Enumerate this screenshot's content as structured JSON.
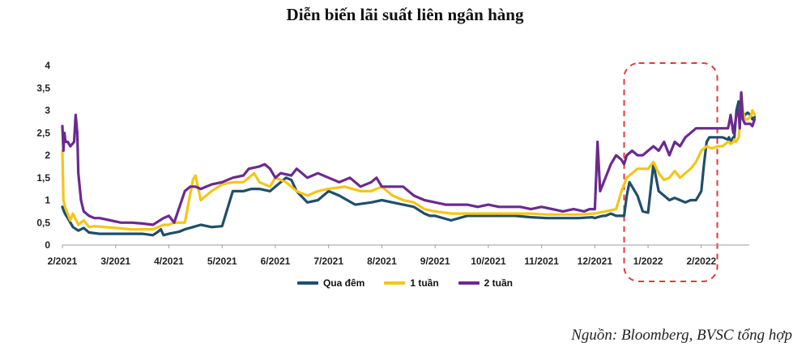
{
  "title": "Diễn biến lãi suất liên ngân hàng",
  "source": "Nguồn: Bloomberg, BVSC tổng hợp",
  "colors": {
    "qua_dem": "#1f4e6b",
    "one_week": "#f5c518",
    "two_week": "#6b2a8f",
    "highlight": "#e53935"
  },
  "chart_data": {
    "type": "line",
    "title": "Diễn biến lãi suất liên ngân hàng",
    "xlabel": "",
    "ylabel": "",
    "ylim": [
      0,
      4
    ],
    "yticks": [
      "0",
      "0,5",
      "1",
      "1,5",
      "2",
      "2,5",
      "3",
      "3,5",
      "4"
    ],
    "xticks": [
      {
        "label": "2/2021",
        "x": 0
      },
      {
        "label": "3/2021",
        "x": 1
      },
      {
        "label": "4/2021",
        "x": 2
      },
      {
        "label": "5/2021",
        "x": 3
      },
      {
        "label": "6/2021",
        "x": 4
      },
      {
        "label": "7/2021",
        "x": 5
      },
      {
        "label": "8/2021",
        "x": 6
      },
      {
        "label": "9/2021",
        "x": 7
      },
      {
        "label": "10/2021",
        "x": 8
      },
      {
        "label": "11/2021",
        "x": 9
      },
      {
        "label": "12/2021",
        "x": 10
      },
      {
        "label": "1/2022",
        "x": 11
      },
      {
        "label": "2/2022",
        "x": 12
      }
    ],
    "highlight_x": [
      10.55,
      12.3
    ],
    "series": [
      {
        "name": "Qua đêm",
        "color": "#1f4e6b",
        "x": [
          0,
          0.03,
          0.06,
          0.1,
          0.15,
          0.2,
          0.3,
          0.4,
          0.5,
          0.7,
          0.9,
          1.2,
          1.5,
          1.7,
          1.8,
          1.85,
          1.9,
          2,
          2.2,
          2.3,
          2.45,
          2.6,
          2.8,
          3,
          3.2,
          3.4,
          3.55,
          3.7,
          3.9,
          4,
          4.2,
          4.3,
          4.4,
          4.6,
          4.8,
          5,
          5.2,
          5.5,
          5.8,
          6,
          6.2,
          6.4,
          6.6,
          6.8,
          6.9,
          7,
          7.3,
          7.6,
          7.9,
          8.2,
          8.5,
          8.8,
          9.1,
          9.4,
          9.7,
          9.95,
          10,
          10.05,
          10.15,
          10.2,
          10.3,
          10.4,
          10.5,
          10.55,
          10.6,
          10.65,
          10.7,
          10.8,
          10.9,
          11,
          11.1,
          11.2,
          11.3,
          11.4,
          11.5,
          11.6,
          11.7,
          11.8,
          11.9,
          12,
          12.05,
          12.1,
          12.15,
          12.2,
          12.3,
          12.4,
          12.5,
          12.52,
          12.55,
          12.6,
          12.62,
          12.66,
          12.7,
          12.72,
          12.75,
          12.78,
          12.82,
          12.87,
          12.92,
          12.96,
          13
        ],
        "values": [
          0.85,
          0.75,
          0.68,
          0.6,
          0.5,
          0.4,
          0.32,
          0.38,
          0.28,
          0.25,
          0.25,
          0.25,
          0.25,
          0.22,
          0.3,
          0.35,
          0.22,
          0.25,
          0.3,
          0.35,
          0.4,
          0.45,
          0.4,
          0.42,
          1.2,
          1.2,
          1.25,
          1.25,
          1.2,
          1.3,
          1.5,
          1.45,
          1.2,
          0.95,
          1.0,
          1.2,
          1.1,
          0.9,
          0.95,
          1.0,
          0.95,
          0.9,
          0.85,
          0.7,
          0.65,
          0.65,
          0.55,
          0.65,
          0.65,
          0.65,
          0.65,
          0.62,
          0.6,
          0.6,
          0.6,
          0.62,
          0.6,
          0.62,
          0.65,
          0.65,
          0.7,
          0.65,
          0.65,
          0.65,
          1.1,
          1.4,
          1.3,
          1.1,
          0.75,
          0.72,
          1.8,
          1.2,
          1.1,
          1.0,
          1.05,
          1.0,
          0.95,
          1.0,
          1.0,
          1.2,
          1.8,
          2.3,
          2.4,
          2.4,
          2.4,
          2.4,
          2.35,
          2.4,
          2.3,
          2.4,
          2.4,
          3.0,
          3.2,
          3.0,
          3.0,
          2.9,
          2.9,
          2.95,
          2.9,
          2.8,
          2.85
        ]
      },
      {
        "name": "1 tuần",
        "color": "#f5c518",
        "x": [
          0,
          0.02,
          0.05,
          0.1,
          0.15,
          0.2,
          0.3,
          0.4,
          0.5,
          0.6,
          0.8,
          1.0,
          1.3,
          1.5,
          1.7,
          1.9,
          2.0,
          2.1,
          2.3,
          2.45,
          2.5,
          2.6,
          2.8,
          3,
          3.2,
          3.4,
          3.5,
          3.6,
          3.7,
          3.9,
          4,
          4.2,
          4.4,
          4.6,
          4.8,
          5,
          5.3,
          5.6,
          5.8,
          6,
          6.2,
          6.4,
          6.6,
          6.8,
          7,
          7.3,
          7.6,
          7.9,
          8.2,
          8.5,
          8.8,
          9.1,
          9.4,
          9.7,
          10,
          10.2,
          10.4,
          10.5,
          10.6,
          10.7,
          10.8,
          10.9,
          11,
          11.1,
          11.2,
          11.3,
          11.4,
          11.5,
          11.6,
          11.7,
          11.8,
          11.9,
          12,
          12.1,
          12.2,
          12.3,
          12.4,
          12.5,
          12.52,
          12.55,
          12.6,
          12.62,
          12.65,
          12.7,
          12.72,
          12.75,
          12.78,
          12.82,
          12.87,
          12.92,
          12.96,
          13
        ],
        "values": [
          2.1,
          1.0,
          0.85,
          0.7,
          0.55,
          0.7,
          0.45,
          0.55,
          0.4,
          0.42,
          0.4,
          0.38,
          0.35,
          0.35,
          0.35,
          0.45,
          0.45,
          0.5,
          0.5,
          1.45,
          1.55,
          1.0,
          1.2,
          1.35,
          1.4,
          1.4,
          1.5,
          1.6,
          1.4,
          1.3,
          1.5,
          1.4,
          1.2,
          1.1,
          1.2,
          1.25,
          1.3,
          1.2,
          1.2,
          1.3,
          1.1,
          1.0,
          0.95,
          0.8,
          0.75,
          0.7,
          0.7,
          0.7,
          0.7,
          0.7,
          0.7,
          0.68,
          0.68,
          0.68,
          0.7,
          0.75,
          0.8,
          1.2,
          1.5,
          1.6,
          1.7,
          1.7,
          1.7,
          1.85,
          1.6,
          1.45,
          1.5,
          1.65,
          1.5,
          1.6,
          1.7,
          1.85,
          2.1,
          2.2,
          2.15,
          2.2,
          2.2,
          2.3,
          2.3,
          2.25,
          2.3,
          2.35,
          2.3,
          2.4,
          2.6,
          3.4,
          3.0,
          2.8,
          2.8,
          2.85,
          3.0,
          2.9
        ]
      },
      {
        "name": "2 tuần",
        "color": "#6b2a8f",
        "x": [
          0,
          0.02,
          0.04,
          0.06,
          0.1,
          0.15,
          0.22,
          0.25,
          0.28,
          0.3,
          0.35,
          0.4,
          0.5,
          0.6,
          0.7,
          0.9,
          1.1,
          1.3,
          1.5,
          1.7,
          1.9,
          2.0,
          2.1,
          2.3,
          2.4,
          2.5,
          2.6,
          2.8,
          3.0,
          3.2,
          3.4,
          3.5,
          3.7,
          3.8,
          3.9,
          4.0,
          4.1,
          4.3,
          4.4,
          4.5,
          4.6,
          4.8,
          5.0,
          5.2,
          5.4,
          5.6,
          5.8,
          5.9,
          6.0,
          6.2,
          6.4,
          6.6,
          6.8,
          7.0,
          7.2,
          7.4,
          7.6,
          7.8,
          8.0,
          8.2,
          8.4,
          8.6,
          8.8,
          9.0,
          9.2,
          9.4,
          9.6,
          9.8,
          9.9,
          10.0,
          10.05,
          10.1,
          10.2,
          10.3,
          10.4,
          10.5,
          10.55,
          10.6,
          10.7,
          10.8,
          10.9,
          11.0,
          11.1,
          11.2,
          11.3,
          11.4,
          11.5,
          11.6,
          11.7,
          11.8,
          11.9,
          12.0,
          12.1,
          12.2,
          12.3,
          12.4,
          12.5,
          12.52,
          12.55,
          12.6,
          12.62,
          12.66,
          12.7,
          12.72,
          12.75,
          12.78,
          12.82,
          12.87,
          12.92,
          12.96,
          13
        ],
        "values": [
          2.65,
          2.1,
          2.5,
          2.3,
          2.3,
          2.2,
          2.3,
          2.9,
          2.5,
          1.6,
          1.0,
          0.75,
          0.65,
          0.6,
          0.6,
          0.55,
          0.5,
          0.5,
          0.48,
          0.45,
          0.6,
          0.65,
          0.5,
          1.2,
          1.3,
          1.3,
          1.25,
          1.35,
          1.4,
          1.5,
          1.55,
          1.7,
          1.75,
          1.8,
          1.7,
          1.5,
          1.6,
          1.55,
          1.7,
          1.6,
          1.5,
          1.6,
          1.5,
          1.4,
          1.5,
          1.3,
          1.4,
          1.5,
          1.3,
          1.3,
          1.3,
          1.1,
          1.0,
          0.95,
          0.9,
          0.9,
          0.9,
          0.85,
          0.9,
          0.85,
          0.85,
          0.85,
          0.8,
          0.85,
          0.8,
          0.75,
          0.8,
          0.75,
          0.8,
          0.8,
          2.3,
          1.2,
          1.5,
          1.8,
          2.0,
          1.9,
          1.8,
          2.0,
          2.1,
          2.0,
          2.0,
          2.1,
          2.2,
          2.1,
          2.3,
          2.0,
          2.3,
          2.2,
          2.4,
          2.5,
          2.6,
          2.6,
          2.6,
          2.6,
          2.6,
          2.6,
          2.6,
          2.7,
          2.9,
          2.5,
          2.6,
          2.9,
          3.0,
          2.6,
          3.4,
          2.8,
          2.7,
          2.7,
          2.7,
          2.65,
          2.8
        ]
      }
    ]
  }
}
